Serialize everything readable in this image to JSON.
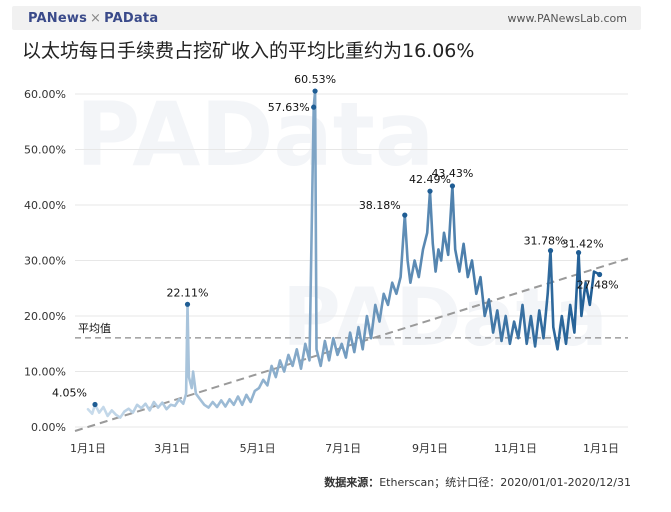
{
  "header": {
    "brand_left": "PANews",
    "brand_sep": "×",
    "brand_right": "PAData",
    "site": "www.PANewsLab.com"
  },
  "title": "以太坊每日手续费占挖矿收入的平均比重约为16.06%",
  "footer": {
    "source_label": "数据来源：",
    "source_value": "Etherscan；统计口径：2020/01/01-2020/12/31"
  },
  "watermark": "PAData",
  "chart_data": {
    "type": "line",
    "title": "以太坊每日手续费占挖矿收入的平均比重约为16.06%",
    "xlabel": "",
    "ylabel": "",
    "x_range": [
      "2020-01-01",
      "2020-12-31"
    ],
    "ylim": [
      0,
      60
    ],
    "yticks": [
      0,
      10,
      20,
      30,
      40,
      50,
      60
    ],
    "ytick_labels": [
      "0.00%",
      "10.00%",
      "20.00%",
      "30.00%",
      "40.00%",
      "50.00%",
      "60.00%"
    ],
    "xtick_labels": [
      "1月1日",
      "3月1日",
      "5月1日",
      "7月1日",
      "9月1日",
      "11月1日",
      "1月1日"
    ],
    "xtick_dates": [
      "2020-01-01",
      "2020-03-01",
      "2020-05-01",
      "2020-07-01",
      "2020-09-01",
      "2020-11-01",
      "2021-01-01"
    ],
    "grid": true,
    "average": {
      "label": "平均值",
      "value": 16.06
    },
    "trend": {
      "start": [
        "2020-01-01",
        0
      ],
      "end": [
        "2020-12-31",
        30
      ]
    },
    "series": [
      {
        "values": [
          [
            "2020-01-01",
            3.2
          ],
          [
            "2020-01-04",
            2.4
          ],
          [
            "2020-01-06",
            4.05
          ],
          [
            "2020-01-09",
            2.6
          ],
          [
            "2020-01-12",
            3.6
          ],
          [
            "2020-01-15",
            2.0
          ],
          [
            "2020-01-18",
            3.0
          ],
          [
            "2020-01-21",
            2.2
          ],
          [
            "2020-01-24",
            1.7
          ],
          [
            "2020-01-27",
            2.8
          ],
          [
            "2020-01-30",
            3.3
          ],
          [
            "2020-02-02",
            2.6
          ],
          [
            "2020-02-05",
            4.0
          ],
          [
            "2020-02-08",
            3.4
          ],
          [
            "2020-02-11",
            4.2
          ],
          [
            "2020-02-14",
            3.0
          ],
          [
            "2020-02-17",
            4.5
          ],
          [
            "2020-02-20",
            3.5
          ],
          [
            "2020-02-23",
            4.4
          ],
          [
            "2020-02-26",
            3.2
          ],
          [
            "2020-02-29",
            4.0
          ],
          [
            "2020-03-03",
            3.8
          ],
          [
            "2020-03-06",
            5.0
          ],
          [
            "2020-03-09",
            4.2
          ],
          [
            "2020-03-11",
            6.0
          ],
          [
            "2020-03-12",
            22.11
          ],
          [
            "2020-03-13",
            9.0
          ],
          [
            "2020-03-15",
            7.0
          ],
          [
            "2020-03-16",
            10.0
          ],
          [
            "2020-03-18",
            6.0
          ],
          [
            "2020-03-21",
            5.0
          ],
          [
            "2020-03-24",
            4.0
          ],
          [
            "2020-03-27",
            3.5
          ],
          [
            "2020-03-30",
            4.5
          ],
          [
            "2020-04-02",
            3.6
          ],
          [
            "2020-04-05",
            4.8
          ],
          [
            "2020-04-08",
            3.7
          ],
          [
            "2020-04-11",
            5.0
          ],
          [
            "2020-04-14",
            4.0
          ],
          [
            "2020-04-17",
            5.5
          ],
          [
            "2020-04-20",
            4.0
          ],
          [
            "2020-04-23",
            5.8
          ],
          [
            "2020-04-26",
            4.5
          ],
          [
            "2020-04-29",
            6.5
          ],
          [
            "2020-05-02",
            7.0
          ],
          [
            "2020-05-05",
            8.5
          ],
          [
            "2020-05-08",
            7.5
          ],
          [
            "2020-05-11",
            11.0
          ],
          [
            "2020-05-14",
            9.0
          ],
          [
            "2020-05-17",
            12.0
          ],
          [
            "2020-05-20",
            10.0
          ],
          [
            "2020-05-23",
            13.0
          ],
          [
            "2020-05-26",
            11.0
          ],
          [
            "2020-05-29",
            14.0
          ],
          [
            "2020-06-01",
            10.5
          ],
          [
            "2020-06-04",
            15.0
          ],
          [
            "2020-06-07",
            12.0
          ],
          [
            "2020-06-10",
            57.63
          ],
          [
            "2020-06-11",
            60.53
          ],
          [
            "2020-06-12",
            14.0
          ],
          [
            "2020-06-15",
            11.0
          ],
          [
            "2020-06-18",
            15.5
          ],
          [
            "2020-06-21",
            12.0
          ],
          [
            "2020-06-24",
            16.0
          ],
          [
            "2020-06-27",
            13.0
          ],
          [
            "2020-06-30",
            15.0
          ],
          [
            "2020-07-03",
            12.5
          ],
          [
            "2020-07-06",
            17.0
          ],
          [
            "2020-07-09",
            13.5
          ],
          [
            "2020-07-12",
            18.0
          ],
          [
            "2020-07-15",
            14.0
          ],
          [
            "2020-07-18",
            20.0
          ],
          [
            "2020-07-21",
            16.0
          ],
          [
            "2020-07-24",
            22.0
          ],
          [
            "2020-07-27",
            19.0
          ],
          [
            "2020-07-30",
            24.0
          ],
          [
            "2020-08-02",
            22.0
          ],
          [
            "2020-08-05",
            26.0
          ],
          [
            "2020-08-08",
            24.0
          ],
          [
            "2020-08-11",
            27.0
          ],
          [
            "2020-08-14",
            38.18
          ],
          [
            "2020-08-16",
            30.0
          ],
          [
            "2020-08-18",
            26.0
          ],
          [
            "2020-08-21",
            30.0
          ],
          [
            "2020-08-24",
            27.0
          ],
          [
            "2020-08-27",
            32.0
          ],
          [
            "2020-08-30",
            35.0
          ],
          [
            "2020-09-01",
            42.49
          ],
          [
            "2020-09-03",
            33.0
          ],
          [
            "2020-09-05",
            28.0
          ],
          [
            "2020-09-07",
            32.0
          ],
          [
            "2020-09-09",
            30.0
          ],
          [
            "2020-09-11",
            35.0
          ],
          [
            "2020-09-14",
            31.0
          ],
          [
            "2020-09-17",
            43.43
          ],
          [
            "2020-09-19",
            32.0
          ],
          [
            "2020-09-22",
            28.0
          ],
          [
            "2020-09-25",
            33.0
          ],
          [
            "2020-09-28",
            27.0
          ],
          [
            "2020-10-01",
            30.0
          ],
          [
            "2020-10-04",
            24.0
          ],
          [
            "2020-10-07",
            27.0
          ],
          [
            "2020-10-10",
            20.0
          ],
          [
            "2020-10-13",
            23.0
          ],
          [
            "2020-10-16",
            17.0
          ],
          [
            "2020-10-19",
            21.0
          ],
          [
            "2020-10-22",
            15.5
          ],
          [
            "2020-10-25",
            20.0
          ],
          [
            "2020-10-28",
            15.0
          ],
          [
            "2020-10-31",
            19.0
          ],
          [
            "2020-11-03",
            16.0
          ],
          [
            "2020-11-06",
            22.0
          ],
          [
            "2020-11-09",
            15.0
          ],
          [
            "2020-11-12",
            20.0
          ],
          [
            "2020-11-15",
            14.5
          ],
          [
            "2020-11-18",
            21.0
          ],
          [
            "2020-11-21",
            16.0
          ],
          [
            "2020-11-24",
            24.0
          ],
          [
            "2020-11-26",
            31.78
          ],
          [
            "2020-11-28",
            18.0
          ],
          [
            "2020-12-01",
            14.0
          ],
          [
            "2020-12-04",
            20.0
          ],
          [
            "2020-12-07",
            15.0
          ],
          [
            "2020-12-10",
            22.0
          ],
          [
            "2020-12-13",
            17.0
          ],
          [
            "2020-12-16",
            31.42
          ],
          [
            "2020-12-18",
            20.0
          ],
          [
            "2020-12-21",
            26.0
          ],
          [
            "2020-12-24",
            22.0
          ],
          [
            "2020-12-27",
            28.0
          ],
          [
            "2020-12-31",
            27.48
          ]
        ]
      }
    ],
    "annotations": [
      {
        "date": "2020-01-06",
        "value": 4.05,
        "text": "4.05%"
      },
      {
        "date": "2020-03-12",
        "value": 22.11,
        "text": "22.11%"
      },
      {
        "date": "2020-06-10",
        "value": 57.63,
        "text": "57.63%"
      },
      {
        "date": "2020-06-11",
        "value": 60.53,
        "text": "60.53%"
      },
      {
        "date": "2020-08-14",
        "value": 38.18,
        "text": "38.18%"
      },
      {
        "date": "2020-09-01",
        "value": 42.49,
        "text": "42.49%"
      },
      {
        "date": "2020-09-17",
        "value": 43.43,
        "text": "43.43%"
      },
      {
        "date": "2020-11-26",
        "value": 31.78,
        "text": "31.78%"
      },
      {
        "date": "2020-12-16",
        "value": 31.42,
        "text": "31.42%"
      },
      {
        "date": "2020-12-31",
        "value": 27.48,
        "text": "27.48%"
      }
    ],
    "colors": {
      "line_start": "#c9dcec",
      "line_end": "#1f5d94",
      "average": "#8a8a8a",
      "trend": "#9a9a9a",
      "grid": "#e7e7e7"
    }
  }
}
